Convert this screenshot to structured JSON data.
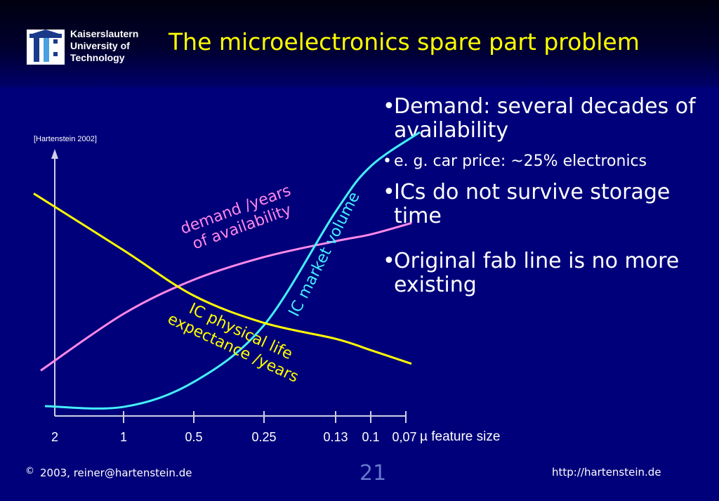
{
  "header": {
    "logo_lines": [
      "Kaiserslautern",
      "University of",
      "Technology"
    ],
    "title": "The microelectronics spare part problem"
  },
  "bullets": [
    {
      "text": "Demand: several decades of availability",
      "size": "big"
    },
    {
      "text": "e. g. car price: ~25% electronics",
      "size": "small"
    },
    {
      "text": "ICs do not survive storage time",
      "size": "big"
    },
    {
      "text": "Original fab line is no more existing",
      "size": "big"
    }
  ],
  "reference": "[Hartenstein 2002]",
  "chart": {
    "x_ticks": [
      "2",
      "1",
      "0.5",
      "0.25",
      "0.13",
      "0.1",
      "0,07"
    ],
    "x_unit": "µ feature size",
    "curve_labels": {
      "demand": [
        "demand /years",
        "of availability"
      ],
      "market": "IC market volume",
      "life": [
        "IC physical life",
        "expectance /years"
      ]
    },
    "colors": {
      "demand": "#ff88e8",
      "market": "#44f0ff",
      "life": "#ffff00",
      "axis": "#cfcfe8"
    }
  },
  "footer": {
    "copyright_symbol": "©",
    "copyright_text": "2003, reiner@hartenstein.de",
    "page_number": "21",
    "url": "http://hartenstein.de"
  },
  "chart_data": {
    "type": "line",
    "x": [
      "2",
      "1",
      "0.5",
      "0.25",
      "0.13",
      "0.1",
      "0,07"
    ],
    "xlabel": "µ feature size",
    "series": [
      {
        "name": "demand /years of availability",
        "values": [
          2.0,
          4.5,
          6.0,
          7.0,
          7.7,
          8.0,
          8.5
        ]
      },
      {
        "name": "IC market volume",
        "values": [
          0.0,
          0.4,
          1.5,
          4.0,
          9.0,
          11.0,
          12.5
        ]
      },
      {
        "name": "IC physical life expectance /years",
        "values": [
          9.8,
          7.3,
          5.3,
          4.1,
          3.4,
          2.9,
          2.3
        ]
      }
    ],
    "ylim": [
      0,
      13
    ],
    "grid": false,
    "legend": "none"
  }
}
